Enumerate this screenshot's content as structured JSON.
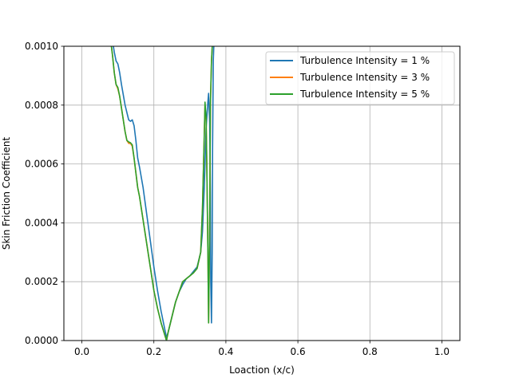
{
  "chart_data": {
    "type": "line",
    "title": "",
    "xlabel": "Loaction (x/c)",
    "ylabel": "Skin Friction Coefficient",
    "xlim": [
      -0.05,
      1.05
    ],
    "ylim": [
      0.0,
      0.001
    ],
    "xticks": [
      {
        "value": 0.0,
        "label": "0.0"
      },
      {
        "value": 0.2,
        "label": "0.2"
      },
      {
        "value": 0.4,
        "label": "0.4"
      },
      {
        "value": 0.6,
        "label": "0.6"
      },
      {
        "value": 0.8,
        "label": "0.8"
      },
      {
        "value": 1.0,
        "label": "1.0"
      }
    ],
    "yticks": [
      {
        "value": 0.0,
        "label": "0.0000"
      },
      {
        "value": 0.0002,
        "label": "0.0002"
      },
      {
        "value": 0.0004,
        "label": "0.0004"
      },
      {
        "value": 0.0006,
        "label": "0.0006"
      },
      {
        "value": 0.0008,
        "label": "0.0008"
      },
      {
        "value": 0.001,
        "label": "0.0010"
      }
    ],
    "grid": true,
    "legend_position": "top-right",
    "series": [
      {
        "name": "Turbulence Intensity = 1 %",
        "color": "#1f77b4",
        "x": [
          0.085,
          0.09,
          0.095,
          0.1,
          0.105,
          0.11,
          0.12,
          0.13,
          0.135,
          0.14,
          0.145,
          0.15,
          0.155,
          0.16,
          0.17,
          0.18,
          0.19,
          0.2,
          0.21,
          0.22,
          0.23,
          0.235,
          0.24,
          0.25,
          0.26,
          0.27,
          0.28,
          0.29,
          0.3,
          0.31,
          0.32,
          0.33,
          0.335,
          0.34,
          0.345,
          0.35,
          0.352,
          0.355,
          0.357,
          0.358,
          0.36,
          0.362,
          0.363,
          0.365,
          0.367
        ],
        "y": [
          0.00102,
          0.00098,
          0.00095,
          0.00094,
          0.00091,
          0.00087,
          0.0008,
          0.00075,
          0.000745,
          0.00075,
          0.00073,
          0.00068,
          0.00062,
          0.00059,
          0.00052,
          0.00043,
          0.00034,
          0.00025,
          0.00017,
          0.0001,
          4e-05,
          1e-05,
          3e-05,
          8e-05,
          0.00013,
          0.000165,
          0.00019,
          0.00021,
          0.00022,
          0.000235,
          0.00025,
          0.0003,
          0.00037,
          0.00052,
          0.00072,
          0.00081,
          0.00084,
          0.00074,
          0.0005,
          0.0002,
          6e-05,
          0.0003,
          0.00065,
          0.00095,
          0.00102
        ]
      },
      {
        "name": "Turbulence Intensity = 3 %",
        "color": "#ff7f0e",
        "x": [
          0.08,
          0.085,
          0.09,
          0.095,
          0.1,
          0.105,
          0.11,
          0.12,
          0.125,
          0.13,
          0.135,
          0.14,
          0.145,
          0.15,
          0.155,
          0.16,
          0.17,
          0.18,
          0.19,
          0.2,
          0.21,
          0.22,
          0.23,
          0.235,
          0.24,
          0.25,
          0.26,
          0.27,
          0.28,
          0.29,
          0.3,
          0.31,
          0.32,
          0.33,
          0.335,
          0.34,
          0.342,
          0.345,
          0.347,
          0.35,
          0.352,
          0.355,
          0.357,
          0.36,
          0.363
        ],
        "y": [
          0.00102,
          0.00097,
          0.00091,
          0.00087,
          0.000855,
          0.00083,
          0.00079,
          0.00071,
          0.00068,
          0.00067,
          0.00067,
          0.00066,
          0.00062,
          0.00057,
          0.00052,
          0.00049,
          0.00041,
          0.00033,
          0.00025,
          0.00017,
          0.00011,
          6e-05,
          2e-05,
          0.0,
          3e-05,
          8e-05,
          0.00013,
          0.000165,
          0.0002,
          0.00021,
          0.00022,
          0.00023,
          0.000245,
          0.0003,
          0.00045,
          0.0007,
          0.0008,
          0.00075,
          0.0006,
          0.0003,
          6e-05,
          0.0004,
          0.0008,
          0.00095,
          0.00102
        ]
      },
      {
        "name": "Turbulence Intensity = 5 %",
        "color": "#2ca02c",
        "x": [
          0.08,
          0.085,
          0.09,
          0.095,
          0.1,
          0.105,
          0.11,
          0.12,
          0.125,
          0.13,
          0.135,
          0.14,
          0.145,
          0.15,
          0.155,
          0.16,
          0.17,
          0.18,
          0.19,
          0.2,
          0.21,
          0.22,
          0.23,
          0.235,
          0.24,
          0.25,
          0.26,
          0.27,
          0.28,
          0.29,
          0.3,
          0.31,
          0.32,
          0.33,
          0.335,
          0.34,
          0.342,
          0.345,
          0.347,
          0.35,
          0.352,
          0.355,
          0.357,
          0.36,
          0.363
        ],
        "y": [
          0.00102,
          0.00097,
          0.00091,
          0.00087,
          0.00086,
          0.00083,
          0.00079,
          0.00071,
          0.00068,
          0.000675,
          0.000672,
          0.000665,
          0.00062,
          0.00057,
          0.00052,
          0.00049,
          0.00041,
          0.00033,
          0.00025,
          0.00017,
          0.00011,
          6e-05,
          2e-05,
          0.0,
          3e-05,
          8e-05,
          0.00013,
          0.000165,
          0.0002,
          0.00021,
          0.00022,
          0.00023,
          0.000245,
          0.0003,
          0.00045,
          0.0007,
          0.00081,
          0.00076,
          0.0006,
          0.0003,
          6e-05,
          0.0004,
          0.0008,
          0.00095,
          0.00102
        ]
      }
    ]
  }
}
